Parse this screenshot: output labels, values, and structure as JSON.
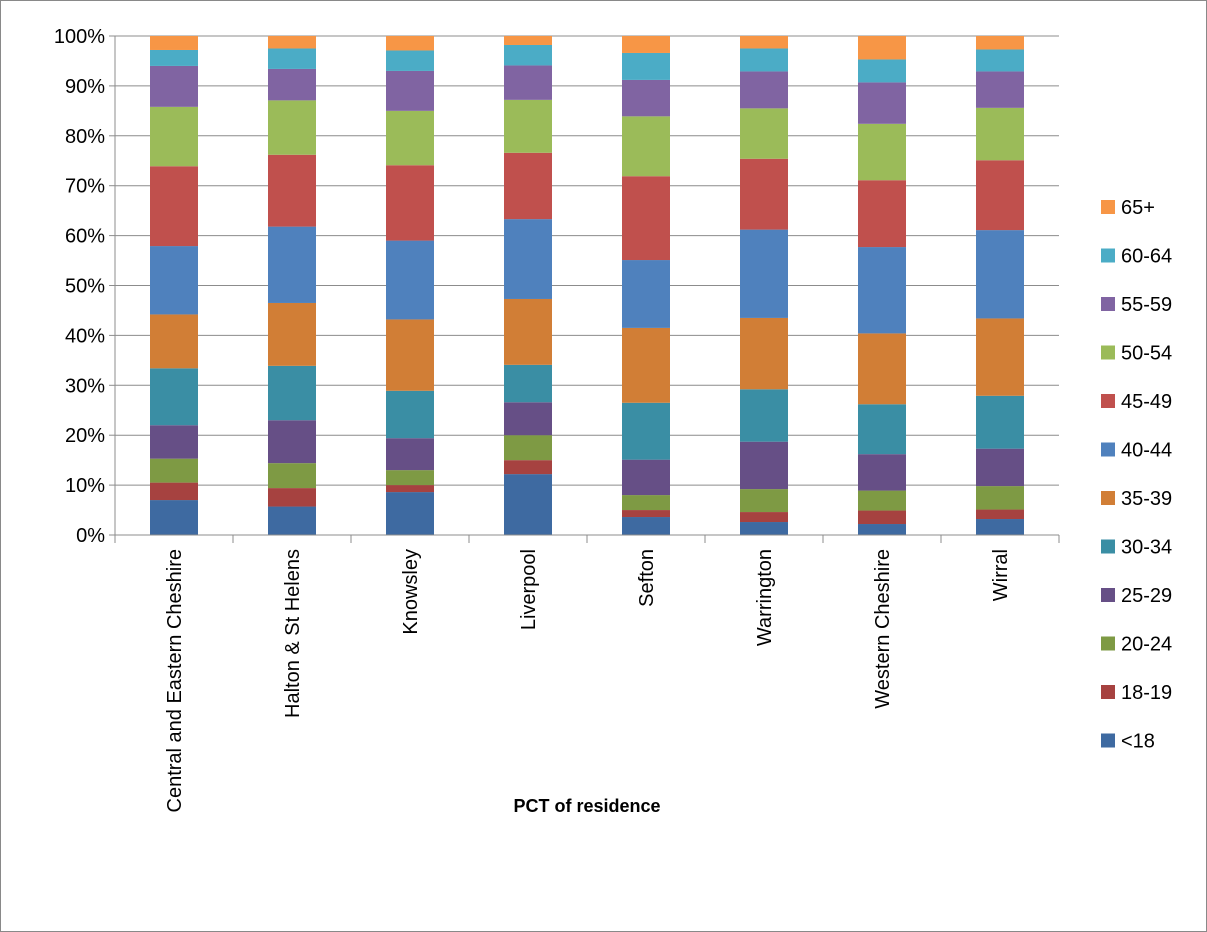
{
  "chart_data": {
    "type": "bar",
    "stacked": true,
    "percent": true,
    "title": "",
    "xlabel": "PCT of residence",
    "ylabel": "",
    "ylim": [
      0,
      100
    ],
    "y_ticks": [
      "0%",
      "10%",
      "20%",
      "30%",
      "40%",
      "50%",
      "60%",
      "70%",
      "80%",
      "90%",
      "100%"
    ],
    "grid": true,
    "legend_position": "right",
    "categories": [
      "Central and Eastern Cheshire",
      "Halton & St Helens",
      "Knowsley",
      "Liverpool",
      "Sefton",
      "Warrington",
      "Western Cheshire",
      "Wirral"
    ],
    "series": [
      {
        "name": "<18",
        "color": "#3E6AA1",
        "values": [
          7.0,
          5.7,
          8.6,
          12.2,
          3.6,
          2.6,
          2.2,
          3.2
        ]
      },
      {
        "name": "18-19",
        "color": "#A64240",
        "values": [
          3.5,
          3.7,
          1.4,
          2.8,
          1.4,
          2.0,
          2.7,
          1.9
        ]
      },
      {
        "name": "20-24",
        "color": "#7E9A44",
        "values": [
          4.8,
          5.0,
          3.0,
          5.0,
          3.0,
          4.6,
          4.0,
          4.7
        ]
      },
      {
        "name": "25-29",
        "color": "#664F86",
        "values": [
          6.7,
          8.6,
          6.4,
          6.6,
          7.1,
          9.5,
          7.3,
          7.5
        ]
      },
      {
        "name": "30-34",
        "color": "#3A8EA4",
        "values": [
          11.4,
          10.9,
          9.5,
          7.5,
          11.4,
          10.5,
          10.0,
          10.6
        ]
      },
      {
        "name": "35-39",
        "color": "#D17E36",
        "values": [
          10.8,
          12.6,
          14.3,
          13.2,
          15.0,
          14.3,
          14.2,
          15.5
        ]
      },
      {
        "name": "40-44",
        "color": "#4F81BD",
        "values": [
          13.7,
          15.3,
          15.8,
          16.0,
          13.6,
          17.7,
          17.3,
          17.7
        ]
      },
      {
        "name": "45-49",
        "color": "#C0504D",
        "values": [
          16.0,
          14.4,
          15.1,
          13.3,
          16.8,
          14.2,
          13.4,
          14.0
        ]
      },
      {
        "name": "50-54",
        "color": "#9BBB59",
        "values": [
          11.9,
          10.9,
          10.9,
          10.6,
          12.0,
          10.1,
          11.3,
          10.5
        ]
      },
      {
        "name": "55-59",
        "color": "#8064A2",
        "values": [
          8.2,
          6.3,
          8.0,
          6.9,
          7.3,
          7.4,
          8.3,
          7.3
        ]
      },
      {
        "name": "60-64",
        "color": "#4BACC6",
        "values": [
          3.2,
          4.1,
          4.1,
          4.1,
          5.4,
          4.6,
          4.6,
          4.4
        ]
      },
      {
        "name": "65+",
        "color": "#F79646",
        "values": [
          2.8,
          2.5,
          2.9,
          1.8,
          3.4,
          2.5,
          4.7,
          2.7
        ]
      }
    ]
  }
}
